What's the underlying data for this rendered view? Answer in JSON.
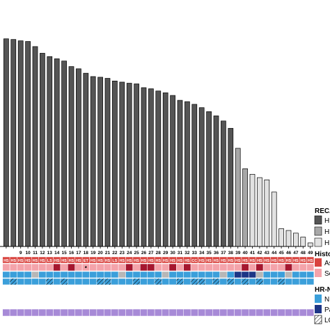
{
  "chart_data": {
    "type": "bar",
    "title": "",
    "xlabel": "",
    "ylabel": "",
    "ylim": [
      0,
      100
    ],
    "grid": false,
    "legend_placement": "right (cropped)",
    "categories": [
      "",
      "",
      "9",
      "10",
      "11",
      "12",
      "13",
      "14",
      "15",
      "16",
      "17",
      "18",
      "19",
      "20",
      "21",
      "22",
      "23",
      "24",
      "25",
      "26",
      "27",
      "28",
      "29",
      "30",
      "31",
      "32",
      "33",
      "34",
      "35",
      "36",
      "37",
      "38",
      "39",
      "40",
      "41",
      "42",
      "43",
      "44",
      "45",
      "46",
      "47",
      "48",
      "49"
    ],
    "values": [
      93.5,
      93.2,
      92.6,
      92.3,
      90,
      87,
      85.5,
      84.5,
      83.5,
      81,
      80,
      78,
      76.5,
      76.2,
      75.7,
      74.5,
      74,
      73.5,
      73.2,
      71.5,
      71,
      70,
      69.2,
      68,
      65.8,
      65.2,
      64,
      62.5,
      60.7,
      58.8,
      56.5,
      53.2,
      44.2,
      35,
      32.5,
      31,
      30,
      24.5,
      8,
      7.2,
      6,
      4.2,
      1.6
    ],
    "bar_class": [
      "high",
      "high",
      "high",
      "high",
      "high",
      "high",
      "high",
      "high",
      "high",
      "high",
      "high",
      "high",
      "high",
      "high",
      "high",
      "high",
      "high",
      "high",
      "high",
      "high",
      "high",
      "high",
      "high",
      "high",
      "high",
      "high",
      "high",
      "high",
      "high",
      "high",
      "high",
      "high",
      "mid",
      "mid",
      "low",
      "low",
      "low",
      "low",
      "low",
      "low",
      "low",
      "low",
      "low"
    ],
    "histology_codes": [
      "HS",
      "HS",
      "HS",
      "HS",
      "HS",
      "HS",
      "LS",
      "HS",
      "HS",
      "HS",
      "HS",
      "ET",
      "HS",
      "HS",
      "HS",
      "LS",
      "HS",
      "HS",
      "HS",
      "HS",
      "HS",
      "HS",
      "HS",
      "HS",
      "HS",
      "HS",
      "CC",
      "HS",
      "HS",
      "HS",
      "HS",
      "HS",
      "HS",
      "HS",
      "HS",
      "HS",
      "HS",
      "HS",
      "HS",
      "HS",
      "HS",
      "HS",
      "HS"
    ],
    "histology_marker": "*",
    "colors": {
      "high_bar": "#555555",
      "mid_bar": "#a8a8a8",
      "low_bar": "#e2e2e2",
      "histology_top": "#d9433e",
      "histology_secondary": "#f4a3aa",
      "histology_dark": "#a5172f",
      "hr_normal": "#3b9fda",
      "hr_pathogenic": "#1d3686",
      "hr_gray": "#b7b7b7",
      "bottom_track": "#a78ad7"
    },
    "legend": {
      "recap_title": "RECA",
      "recap_items": [
        "HI",
        "HI",
        "HI"
      ],
      "histology_title": "Histo",
      "histology_items": [
        "As",
        "Se"
      ],
      "hr_title": "HR-N",
      "hr_items": [
        "N",
        "Pa",
        "LO"
      ]
    }
  }
}
